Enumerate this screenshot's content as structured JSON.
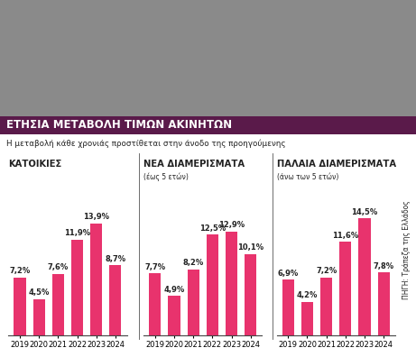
{
  "title": "ΕΤΗΣΙΑ ΜΕΤΑΒΟΛΗ ΤΙΜΩΝ ΑΚΙΝΗΤΩΝ",
  "subtitle": "Η μεταβολή κάθε χρονιάς προστίθεται στην άνοδο της προηγούμενης",
  "source": "ΠΗΓΗ: Τράπεζα της Ελλάδος",
  "chart_data": [
    {
      "type": "bar",
      "title": "ΚΑΤΟΙΚΙΕΣ",
      "categories": [
        "2019",
        "2020",
        "2021",
        "2022",
        "2023",
        "2024"
      ],
      "values": [
        7.2,
        4.5,
        7.6,
        11.9,
        13.9,
        8.7
      ],
      "value_labels": [
        "7,2%",
        "4,5%",
        "7,6%",
        "11,9%",
        "13,9%",
        "8,7%"
      ],
      "color": "#e8336d",
      "data_labels": true,
      "tick_labels": "x"
    },
    {
      "type": "bar",
      "title": "ΝΕΑ ΔΙΑΜΕΡΙΣΜΑΤΑ",
      "subtitle": "(έως 5 ετών)",
      "categories": [
        "2019",
        "2020",
        "2021",
        "2022",
        "2023",
        "2024"
      ],
      "values": [
        7.7,
        4.9,
        8.2,
        12.5,
        12.9,
        10.1
      ],
      "value_labels": [
        "7,7%",
        "4,9%",
        "8,2%",
        "12,5%",
        "12,9%",
        "10,1%"
      ],
      "color": "#e8336d",
      "data_labels": true,
      "tick_labels": "x"
    },
    {
      "type": "bar",
      "title": "ΠΑΛΑΙΑ ΔΙΑΜΕΡΙΣΜΑΤΑ",
      "subtitle": "(άνω των 5 ετών)",
      "categories": [
        "2019",
        "2020",
        "2021",
        "2022",
        "2023",
        "2024"
      ],
      "values": [
        6.9,
        4.2,
        7.2,
        11.6,
        14.5,
        7.8
      ],
      "value_labels": [
        "6,9%",
        "4,2%",
        "7,2%",
        "11,6%",
        "14,5%",
        "7,8%"
      ],
      "color": "#e8336d",
      "data_labels": true,
      "tick_labels": "x"
    }
  ]
}
